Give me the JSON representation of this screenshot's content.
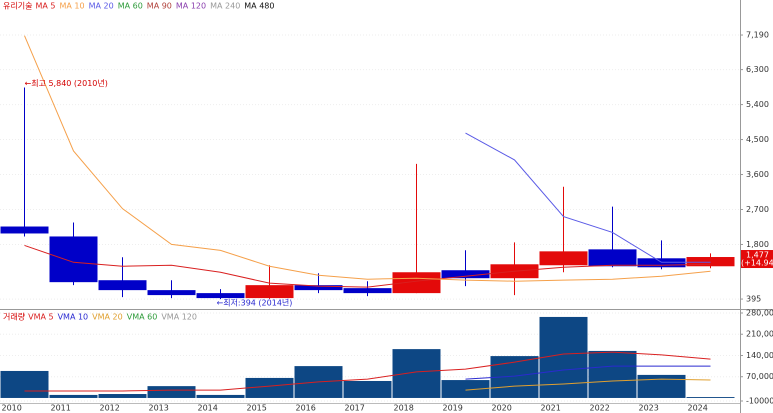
{
  "chart_data": [
    {
      "type": "candlestick",
      "title": "유리기술",
      "title_color": "#d40000",
      "open": [
        2262,
        2006,
        880,
        625,
        548,
        420,
        753,
        676,
        548,
        1137,
        932,
        1265,
        1674,
        1444,
        1239
      ],
      "high": [
        5840,
        2364,
        1470,
        880,
        650,
        1265,
        1060,
        855,
        3873,
        1650,
        1853,
        3285,
        2773,
        1904,
        1571
      ],
      "low": [
        2006,
        753,
        446,
        420,
        394,
        400,
        548,
        472,
        548,
        727,
        497,
        1085,
        1213,
        1162,
        1188
      ],
      "close": [
        2083,
        830,
        625,
        497,
        420,
        753,
        625,
        548,
        1085,
        932,
        1290,
        1623,
        1239,
        1213,
        1477
      ],
      "up_color": "#e30a0a",
      "down_color": "#0000c8",
      "high_label": "←최고 5,840 (2010년)",
      "low_label": "←최저:394 (2014년)",
      "last_value_label": "1,477",
      "change_label": "(+14.94%)",
      "ylim": [
        165,
        8040
      ],
      "yticks": [
        395,
        {
          "value": 1800,
          "label": "1,800"
        },
        {
          "value": 2700,
          "label": "2,700"
        },
        {
          "value": 3600,
          "label": "3,600"
        },
        {
          "value": 4500,
          "label": "4,500"
        },
        {
          "value": 5400,
          "label": "5,400"
        },
        {
          "value": 6300,
          "label": "6,300"
        },
        {
          "value": 7190,
          "label": "7,190"
        }
      ],
      "lines": [
        {
          "name": "MA 5",
          "color": "#d92020",
          "values": [
            1775,
            1341,
            1239,
            1265,
            1085,
            804,
            727,
            701,
            855,
            983,
            1111,
            1213,
            1265,
            1265,
            1290
          ]
        },
        {
          "name": "MA 10",
          "color": "#f5a04a",
          "values": [
            7173,
            4206,
            2722,
            1802,
            1648,
            1239,
            1009,
            906,
            932,
            881,
            855,
            881,
            906,
            983,
            1111
          ]
        },
        {
          "name": "MA 20",
          "color": "#5a5ae6",
          "values": [
            null,
            null,
            null,
            null,
            null,
            null,
            null,
            null,
            null,
            4666,
            3976,
            2518,
            2109,
            1341,
            1341
          ]
        },
        {
          "name": "MA 60",
          "color": "#2e9b3a"
        },
        {
          "name": "MA 90",
          "color": "#b0403a"
        },
        {
          "name": "MA 120",
          "color": "#8a3fae"
        },
        {
          "name": "MA 240",
          "color": "#999999"
        },
        {
          "name": "MA 480",
          "color": "#111111"
        }
      ]
    },
    {
      "type": "bar",
      "title": "거래량",
      "title_color": "#d40000",
      "color": "#0d4784",
      "categories": [
        "2010",
        "2011",
        "2012",
        "2013",
        "2014",
        "2015",
        "2016",
        "2017",
        "2018",
        "2019",
        "2020",
        "2021",
        "2022",
        "2023",
        "2024"
      ],
      "values": [
        89000,
        10000,
        13000,
        39000,
        10000,
        66000,
        105000,
        56000,
        161000,
        59000,
        138000,
        267000,
        155000,
        76000,
        3000
      ],
      "ylim": [
        -10000,
        280000
      ],
      "yticks": [
        {
          "value": -10000,
          "label": "-10000"
        },
        {
          "value": 70000,
          "label": "70,000"
        },
        {
          "value": 140000,
          "label": "140,000"
        },
        {
          "value": 210000,
          "label": "210,000"
        },
        {
          "value": 280000,
          "label": "280,000"
        }
      ],
      "lines": [
        {
          "name": "VMA 5",
          "color": "#d92020",
          "values": [
            23000,
            23000,
            23000,
            26000,
            26000,
            39000,
            53000,
            62000,
            86000,
            95000,
            118000,
            145000,
            151000,
            142000,
            128000
          ]
        },
        {
          "name": "VMA 10",
          "color": "#2a2ad0",
          "values": [
            null,
            null,
            null,
            null,
            null,
            null,
            null,
            null,
            null,
            62000,
            72000,
            92000,
            105000,
            105000,
            105000
          ]
        },
        {
          "name": "VMA 20",
          "color": "#e0a030",
          "values": [
            null,
            null,
            null,
            null,
            null,
            null,
            null,
            null,
            null,
            26000,
            39000,
            46000,
            56000,
            62000,
            59000
          ]
        },
        {
          "name": "VMA 60",
          "color": "#2e9b3a"
        },
        {
          "name": "VMA 120",
          "color": "#999999"
        }
      ]
    }
  ]
}
